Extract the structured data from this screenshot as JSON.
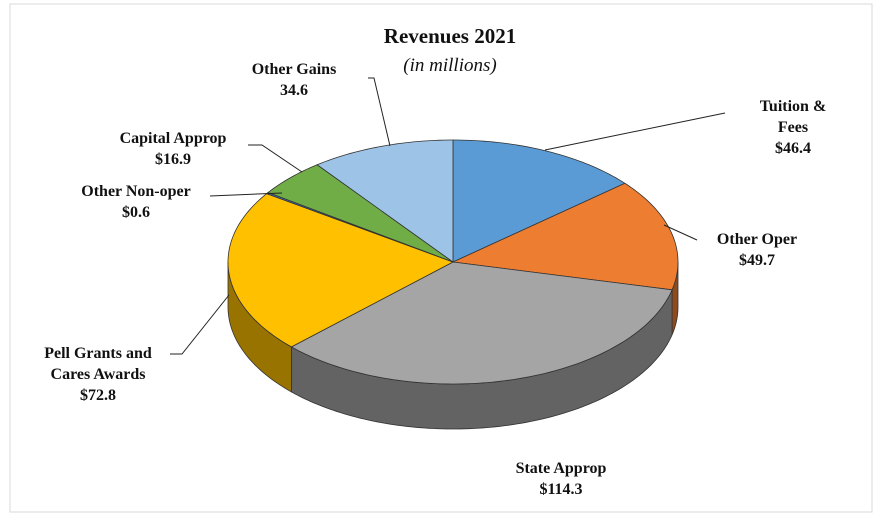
{
  "chart_data": {
    "type": "pie3d",
    "title": "Revenues 2021",
    "subtitle": "(in millions)",
    "categories": [
      "Tuition & Fees",
      "Other Oper",
      "State Approp",
      "Pell Grants and Cares Awards",
      "Other Non-oper",
      "Capital Approp",
      "Other Gains"
    ],
    "values": [
      46.4,
      49.7,
      114.3,
      72.8,
      0.6,
      16.9,
      34.6
    ],
    "value_labels": [
      "$46.4",
      "$49.7",
      "$114.3",
      "$72.8",
      "$0.6",
      "$16.9",
      "34.6"
    ],
    "colors": [
      "#5b9bd5",
      "#ed7d31",
      "#a5a5a5",
      "#ffc000",
      "#4472c4",
      "#70ad47",
      "#9dc3e6"
    ]
  }
}
